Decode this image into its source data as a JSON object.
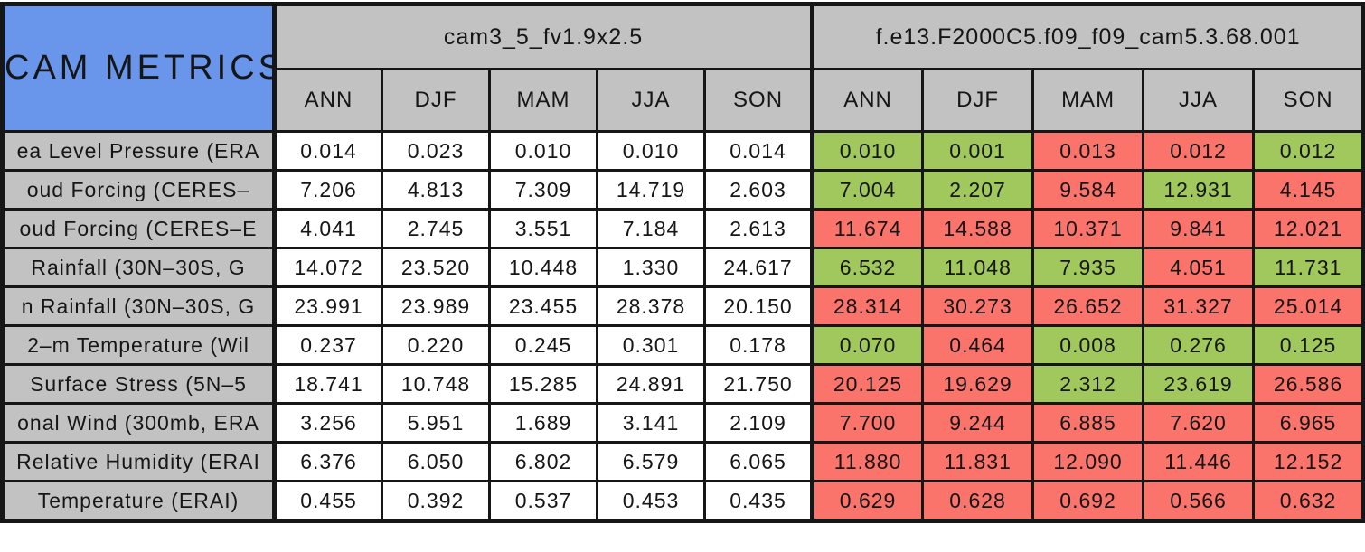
{
  "title": "CAM METRICS",
  "colors": {
    "title_bg": "#6996EB",
    "header_bg": "#C2C2C2",
    "better": "#A0C85C",
    "worse": "#FA746B",
    "border": "#161616",
    "baseline_bg": "#FFFFFF"
  },
  "chart_data": {
    "type": "table",
    "title": "CAM METRICS",
    "legend_note": "green = improved vs baseline, red = degraded vs baseline (colors as rendered)",
    "groups": [
      {
        "name": "cam3_5_fv1.9x2.5",
        "seasons": [
          "ANN",
          "DJF",
          "MAM",
          "JJA",
          "SON"
        ]
      },
      {
        "name": "f.e13.F2000C5.f09_f09_cam5.3.68.001",
        "seasons": [
          "ANN",
          "DJF",
          "MAM",
          "JJA",
          "SON"
        ]
      }
    ],
    "rows": [
      {
        "label": "ea Level Pressure (ERA",
        "baseline": [
          "0.014",
          "0.023",
          "0.010",
          "0.010",
          "0.014"
        ],
        "test": [
          {
            "v": "0.010",
            "status": "better"
          },
          {
            "v": "0.001",
            "status": "better"
          },
          {
            "v": "0.013",
            "status": "worse"
          },
          {
            "v": "0.012",
            "status": "worse"
          },
          {
            "v": "0.012",
            "status": "better"
          }
        ]
      },
      {
        "label": "oud Forcing (CERES–",
        "baseline": [
          "7.206",
          "4.813",
          "7.309",
          "14.719",
          "2.603"
        ],
        "test": [
          {
            "v": "7.004",
            "status": "better"
          },
          {
            "v": "2.207",
            "status": "better"
          },
          {
            "v": "9.584",
            "status": "worse"
          },
          {
            "v": "12.931",
            "status": "better"
          },
          {
            "v": "4.145",
            "status": "worse"
          }
        ]
      },
      {
        "label": "oud Forcing (CERES–E",
        "baseline": [
          "4.041",
          "2.745",
          "3.551",
          "7.184",
          "2.613"
        ],
        "test": [
          {
            "v": "11.674",
            "status": "worse"
          },
          {
            "v": "14.588",
            "status": "worse"
          },
          {
            "v": "10.371",
            "status": "worse"
          },
          {
            "v": "9.841",
            "status": "worse"
          },
          {
            "v": "12.021",
            "status": "worse"
          }
        ]
      },
      {
        "label": "Rainfall (30N–30S, G",
        "baseline": [
          "14.072",
          "23.520",
          "10.448",
          "1.330",
          "24.617"
        ],
        "test": [
          {
            "v": "6.532",
            "status": "better"
          },
          {
            "v": "11.048",
            "status": "better"
          },
          {
            "v": "7.935",
            "status": "better"
          },
          {
            "v": "4.051",
            "status": "worse"
          },
          {
            "v": "11.731",
            "status": "better"
          }
        ]
      },
      {
        "label": "n Rainfall (30N–30S, G",
        "baseline": [
          "23.991",
          "23.989",
          "23.455",
          "28.378",
          "20.150"
        ],
        "test": [
          {
            "v": "28.314",
            "status": "worse"
          },
          {
            "v": "30.273",
            "status": "worse"
          },
          {
            "v": "26.652",
            "status": "worse"
          },
          {
            "v": "31.327",
            "status": "worse"
          },
          {
            "v": "25.014",
            "status": "worse"
          }
        ]
      },
      {
        "label": "2–m Temperature (Wil",
        "baseline": [
          "0.237",
          "0.220",
          "0.245",
          "0.301",
          "0.178"
        ],
        "test": [
          {
            "v": "0.070",
            "status": "better"
          },
          {
            "v": "0.464",
            "status": "worse"
          },
          {
            "v": "0.008",
            "status": "better"
          },
          {
            "v": "0.276",
            "status": "better"
          },
          {
            "v": "0.125",
            "status": "better"
          }
        ]
      },
      {
        "label": "Surface Stress (5N–5",
        "baseline": [
          "18.741",
          "10.748",
          "15.285",
          "24.891",
          "21.750"
        ],
        "test": [
          {
            "v": "20.125",
            "status": "worse"
          },
          {
            "v": "19.629",
            "status": "worse"
          },
          {
            "v": "2.312",
            "status": "better"
          },
          {
            "v": "23.619",
            "status": "better"
          },
          {
            "v": "26.586",
            "status": "worse"
          }
        ]
      },
      {
        "label": "onal Wind (300mb, ERA",
        "baseline": [
          "3.256",
          "5.951",
          "1.689",
          "3.141",
          "2.109"
        ],
        "test": [
          {
            "v": "7.700",
            "status": "worse"
          },
          {
            "v": "9.244",
            "status": "worse"
          },
          {
            "v": "6.885",
            "status": "worse"
          },
          {
            "v": "7.620",
            "status": "worse"
          },
          {
            "v": "6.965",
            "status": "worse"
          }
        ]
      },
      {
        "label": "Relative Humidity (ERAI",
        "baseline": [
          "6.376",
          "6.050",
          "6.802",
          "6.579",
          "6.065"
        ],
        "test": [
          {
            "v": "11.880",
            "status": "worse"
          },
          {
            "v": "11.831",
            "status": "worse"
          },
          {
            "v": "12.090",
            "status": "worse"
          },
          {
            "v": "11.446",
            "status": "worse"
          },
          {
            "v": "12.152",
            "status": "worse"
          }
        ]
      },
      {
        "label": "Temperature (ERAI)",
        "baseline": [
          "0.455",
          "0.392",
          "0.537",
          "0.453",
          "0.435"
        ],
        "test": [
          {
            "v": "0.629",
            "status": "worse"
          },
          {
            "v": "0.628",
            "status": "worse"
          },
          {
            "v": "0.692",
            "status": "worse"
          },
          {
            "v": "0.566",
            "status": "worse"
          },
          {
            "v": "0.632",
            "status": "worse"
          }
        ]
      }
    ]
  }
}
